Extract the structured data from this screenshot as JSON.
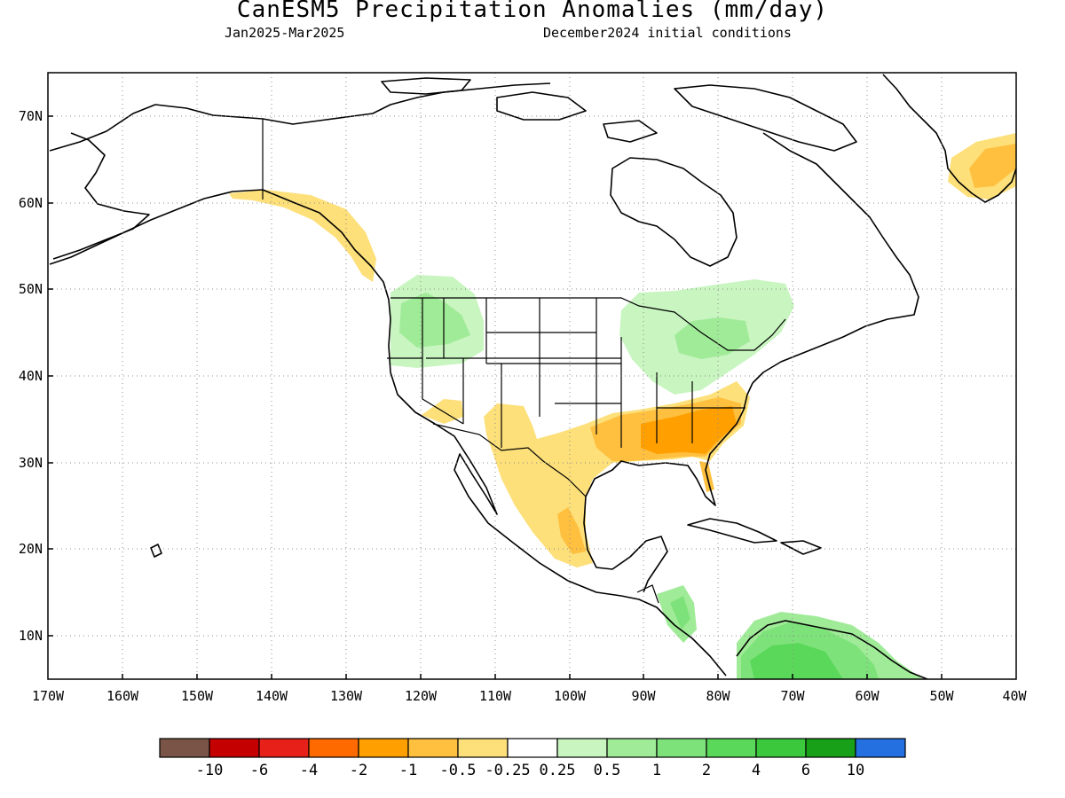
{
  "title": "CanESM5 Precipitation Anomalies (mm/day)",
  "subtitle_left": "Jan2025-Mar2025",
  "subtitle_right": "December2024 initial conditions",
  "map": {
    "lon_range": [
      -170,
      -40
    ],
    "lat_range": [
      5,
      75
    ],
    "lat_labels": [
      "10N",
      "20N",
      "30N",
      "40N",
      "50N",
      "60N",
      "70N"
    ],
    "lon_labels": [
      "170W",
      "160W",
      "150W",
      "140W",
      "130W",
      "120W",
      "110W",
      "100W",
      "90W",
      "80W",
      "70W",
      "60W",
      "50W",
      "40W"
    ],
    "gridlines": "dotted"
  },
  "colorbar": {
    "colors": [
      "#7a5547",
      "#c40000",
      "#e8201a",
      "#ff6a00",
      "#ffa000",
      "#ffc040",
      "#fde07a",
      "#ffffff",
      "#c8f5c0",
      "#a0eb98",
      "#7ee27a",
      "#5ad85a",
      "#3cc83c",
      "#18a018",
      "#2470e0"
    ],
    "labels": [
      "-10",
      "-6",
      "-4",
      "-2",
      "-1",
      "-0.5",
      "-0.25",
      "0.25",
      "0.5",
      "1",
      "2",
      "4",
      "6",
      "10"
    ]
  },
  "anomalies": [
    {
      "region": "Alaska coast / British Columbia",
      "level": "-0.5"
    },
    {
      "region": "Greenland south",
      "level": "-1"
    },
    {
      "region": "US Southwest / Northern Mexico",
      "level": "-0.5"
    },
    {
      "region": "Southeast US",
      "level": "-1"
    },
    {
      "region": "Southern Mexico",
      "level": "-1"
    },
    {
      "region": "Pacific Northwest / Northern Rockies",
      "level": "0.5"
    },
    {
      "region": "Great Lakes / Ohio Valley / Quebec",
      "level": "0.5"
    },
    {
      "region": "Central America",
      "level": "1"
    },
    {
      "region": "Northern South America",
      "level": "2"
    }
  ]
}
